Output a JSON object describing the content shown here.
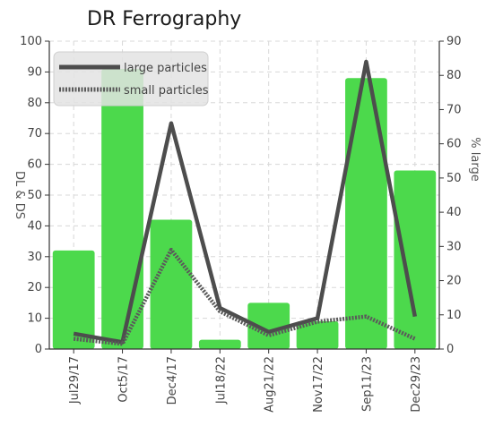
{
  "chart_data": {
    "type": "bar",
    "title": "DR Ferrography",
    "categories": [
      "Jul29/17",
      "Oct5/17",
      "Dec4/17",
      "Jul18/22",
      "Aug21/22",
      "Nov17/22",
      "Sep11/23",
      "Dec29/23"
    ],
    "bars": {
      "values": [
        32,
        91,
        42,
        3,
        15,
        9,
        88,
        58
      ],
      "color": "#4cd94c"
    },
    "series": [
      {
        "name": "large particles",
        "values": [
          4.5,
          2,
          66,
          12,
          5,
          9,
          84,
          9.5
        ],
        "color": "#4d4d4d",
        "style": "solid"
      },
      {
        "name": "small particles",
        "values": [
          3,
          1.5,
          29,
          11,
          4,
          8,
          9.5,
          3
        ],
        "color": "#5a5a5a",
        "style": "dotted"
      }
    ],
    "left_axis": {
      "label": "DL & DS",
      "ylim": [
        0,
        100
      ],
      "ticks": [
        0,
        10,
        20,
        30,
        40,
        50,
        60,
        70,
        80,
        90,
        100
      ]
    },
    "right_axis": {
      "label": "% large",
      "ylim": [
        0,
        90
      ],
      "ticks": [
        0,
        10,
        20,
        30,
        40,
        50,
        60,
        70,
        80,
        90
      ]
    },
    "grid": true,
    "legend_position": "top-left"
  }
}
